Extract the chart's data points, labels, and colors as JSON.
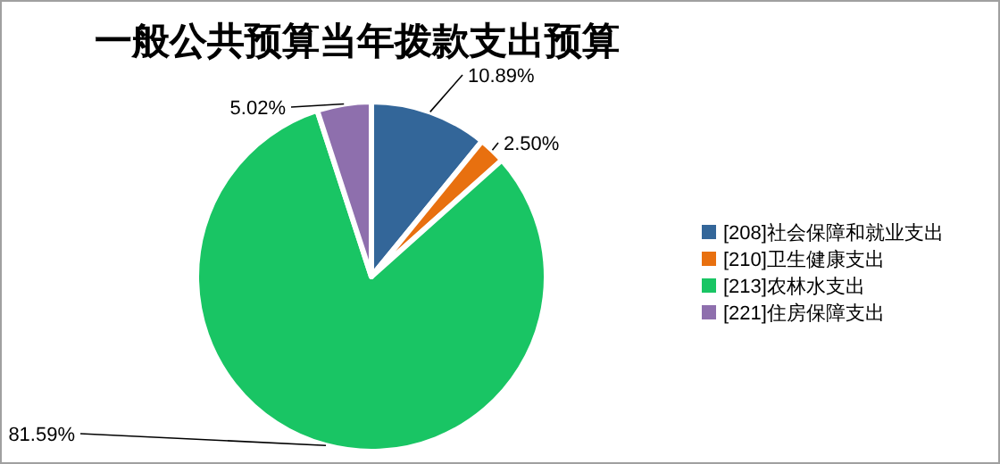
{
  "chart_data": {
    "type": "pie",
    "title": "一般公共预算当年拨款支出预算",
    "categories": [
      "[208]社会保障和就业支出",
      "[210]卫生健康支出",
      "[213]农林水支出",
      "[221]住房保障支出"
    ],
    "values": [
      10.89,
      2.5,
      81.59,
      5.02
    ],
    "colors": [
      "#336699",
      "#e8700f",
      "#19c564",
      "#8e6fad"
    ],
    "value_labels": [
      "10.89%",
      "2.50%",
      "81.59%",
      "5.02%"
    ],
    "legend": "right"
  }
}
